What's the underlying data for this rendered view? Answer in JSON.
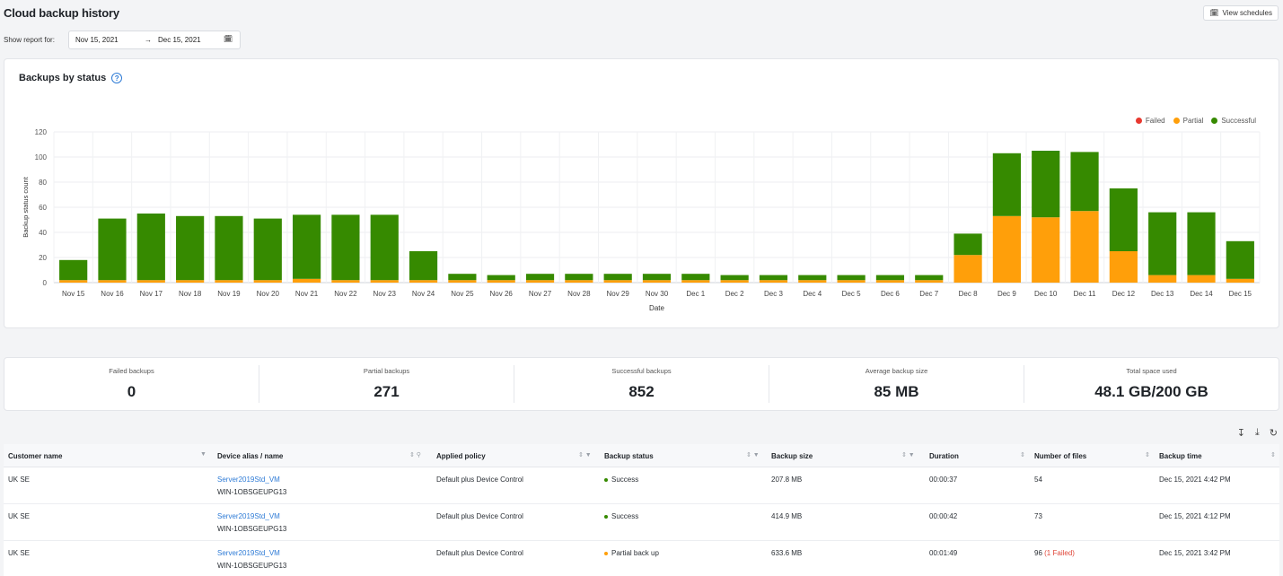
{
  "header": {
    "title": "Cloud backup history",
    "view_schedules": "View schedules"
  },
  "report": {
    "label": "Show report for:",
    "from": "Nov 15, 2021",
    "arrow": "→",
    "to": "Dec 15, 2021"
  },
  "chart_data": {
    "type": "bar",
    "stacked": true,
    "title": "Backups by status",
    "xlabel": "Date",
    "ylabel": "Backup status count",
    "ylim": [
      0,
      120
    ],
    "yticks": [
      0,
      20,
      40,
      60,
      80,
      100,
      120
    ],
    "grid": true,
    "legend_position": "top-right",
    "categories": [
      "Nov 15",
      "Nov 16",
      "Nov 17",
      "Nov 18",
      "Nov 19",
      "Nov 20",
      "Nov 21",
      "Nov 22",
      "Nov 23",
      "Nov 24",
      "Nov 25",
      "Nov 26",
      "Nov 27",
      "Nov 28",
      "Nov 29",
      "Nov 30",
      "Dec 1",
      "Dec 2",
      "Dec 3",
      "Dec 4",
      "Dec 5",
      "Dec 6",
      "Dec 7",
      "Dec 8",
      "Dec 9",
      "Dec 10",
      "Dec 11",
      "Dec 12",
      "Dec 13",
      "Dec 14",
      "Dec 15"
    ],
    "series": [
      {
        "name": "Failed",
        "color": "#e8382f",
        "values": [
          0,
          0,
          0,
          0,
          0,
          0,
          0,
          0,
          0,
          0,
          0,
          0,
          0,
          0,
          0,
          0,
          0,
          0,
          0,
          0,
          0,
          0,
          0,
          0,
          0,
          0,
          0,
          0,
          0,
          0,
          0
        ]
      },
      {
        "name": "Partial",
        "color": "#ff9f0a",
        "values": [
          2,
          2,
          2,
          2,
          2,
          2,
          3,
          2,
          2,
          2,
          2,
          2,
          2,
          2,
          2,
          2,
          2,
          2,
          2,
          2,
          2,
          2,
          2,
          22,
          53,
          52,
          57,
          25,
          6,
          6,
          3
        ]
      },
      {
        "name": "Successful",
        "color": "#368a00",
        "values": [
          16,
          49,
          53,
          51,
          51,
          49,
          51,
          52,
          52,
          23,
          5,
          4,
          5,
          5,
          5,
          5,
          5,
          4,
          4,
          4,
          4,
          4,
          4,
          17,
          50,
          53,
          47,
          50,
          50,
          50,
          30
        ]
      }
    ]
  },
  "stats": [
    {
      "label": "Failed backups",
      "value": "0"
    },
    {
      "label": "Partial backups",
      "value": "271"
    },
    {
      "label": "Successful backups",
      "value": "852"
    },
    {
      "label": "Average backup size",
      "value": "85 MB"
    },
    {
      "label": "Total space used",
      "value": "48.1 GB/200 GB"
    }
  ],
  "table": {
    "columns": [
      "Customer name",
      "Device alias / name",
      "Applied policy",
      "Backup status",
      "Backup size",
      "Duration",
      "Number of files",
      "Backup time"
    ],
    "rows": [
      {
        "customer": "UK SE",
        "alias": "Server2019Std_VM",
        "device": "WIN-1OBSGEUPG13",
        "policy": "Default plus Device Control",
        "status": "Success",
        "status_color": "#368a00",
        "size": "207.8 MB",
        "duration": "00:00:37",
        "files": "54",
        "files_note": "",
        "time": "Dec 15, 2021 4:42 PM"
      },
      {
        "customer": "UK SE",
        "alias": "Server2019Std_VM",
        "device": "WIN-1OBSGEUPG13",
        "policy": "Default plus Device Control",
        "status": "Success",
        "status_color": "#368a00",
        "size": "414.9 MB",
        "duration": "00:00:42",
        "files": "73",
        "files_note": "",
        "time": "Dec 15, 2021 4:12 PM"
      },
      {
        "customer": "UK SE",
        "alias": "Server2019Std_VM",
        "device": "WIN-1OBSGEUPG13",
        "policy": "Default plus Device Control",
        "status": "Partial back up",
        "status_color": "#ff9f0a",
        "size": "633.6 MB",
        "duration": "00:01:49",
        "files": "96",
        "files_note": "(1 Failed)",
        "time": "Dec 15, 2021 3:42 PM"
      }
    ]
  }
}
